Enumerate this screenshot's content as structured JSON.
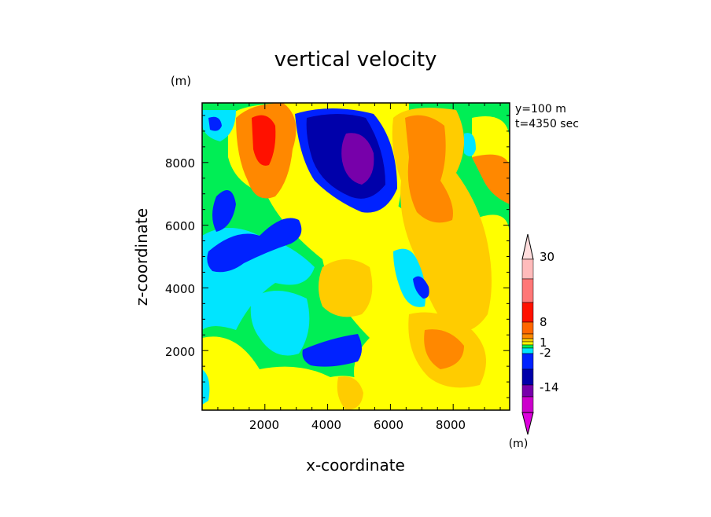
{
  "chart_data": {
    "type": "heatmap",
    "title": "vertical velocity",
    "xlabel": "x-coordinate",
    "ylabel": "z-coordinate",
    "y_unit": "(m)",
    "x_ticks": [
      "2000",
      "4000",
      "6000",
      "8000"
    ],
    "y_ticks": [
      "2000",
      "4000",
      "6000",
      "8000"
    ],
    "xlim": [
      0,
      9800
    ],
    "ylim": [
      100,
      9900
    ],
    "info_lines": [
      "y=100 m",
      "t=4350 sec"
    ],
    "colorbar": {
      "labels": [
        "30",
        "8",
        "1",
        "-2",
        "-14"
      ],
      "unit": "(m)"
    },
    "colors": {
      "background": "#00ee55",
      "green": "#00ee55",
      "yellow": "#ffff00",
      "light_orange": "#ffcc00",
      "orange": "#ff8800",
      "dark_orange": "#ff6600",
      "red": "#ff1100",
      "cyan": "#00e5ff",
      "blue": "#0022ff",
      "navy": "#0000aa",
      "purple": "#7700aa",
      "magenta": "#cc00cc"
    }
  }
}
